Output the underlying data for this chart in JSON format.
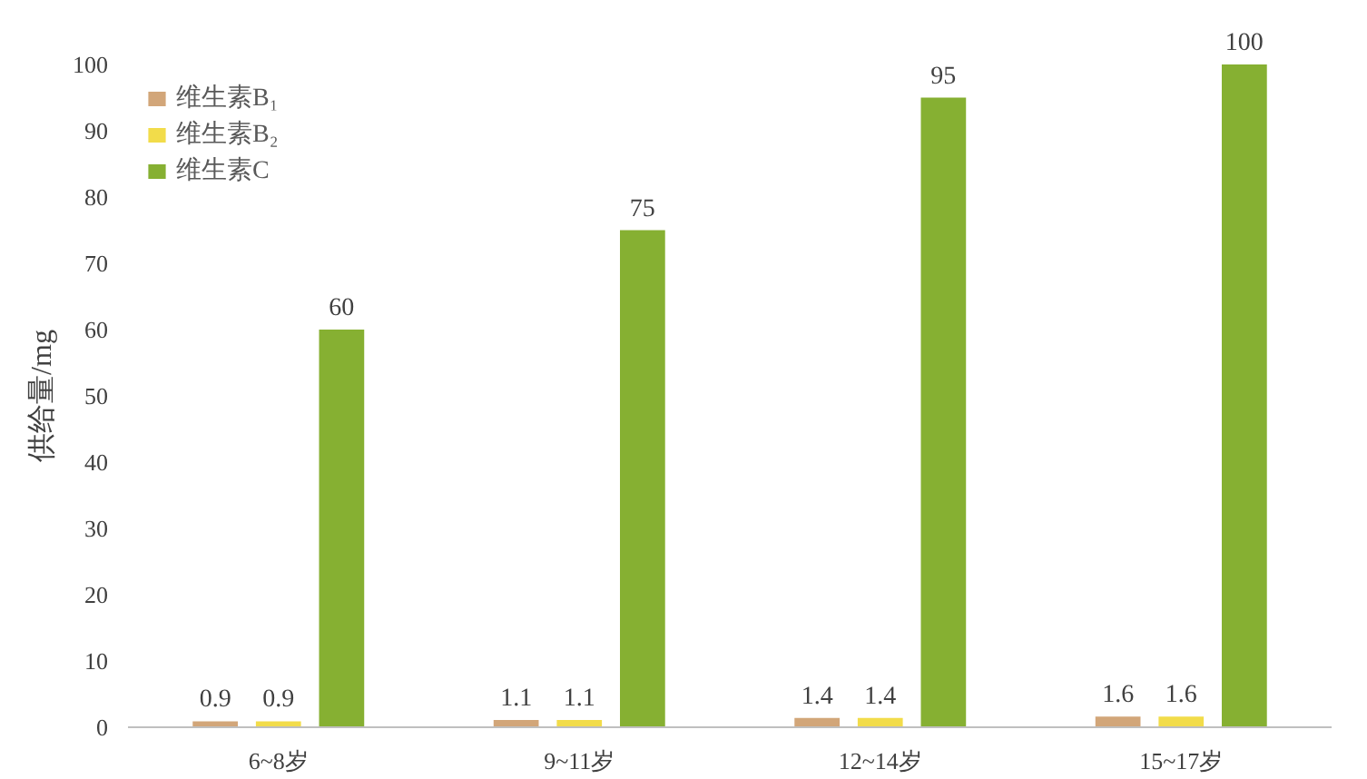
{
  "chart_data": {
    "type": "bar",
    "ylabel": "供给量/mg",
    "categories": [
      "6~8岁",
      "9~11岁",
      "12~14岁",
      "15~17岁"
    ],
    "series": [
      {
        "name": "维生素B₁",
        "color": "#d2a679",
        "values": [
          0.9,
          1.1,
          1.4,
          1.6
        ]
      },
      {
        "name": "维生素B₂",
        "color": "#f2dc4a",
        "values": [
          0.9,
          1.1,
          1.4,
          1.6
        ]
      },
      {
        "name": "维生素C",
        "color": "#86b032",
        "values": [
          60,
          75,
          95,
          100
        ]
      }
    ],
    "ylim": [
      0,
      100
    ],
    "yticks": [
      0,
      10,
      20,
      30,
      40,
      50,
      60,
      70,
      80,
      90,
      100
    ],
    "grid": false,
    "legend": "top left",
    "data_labels": true
  }
}
